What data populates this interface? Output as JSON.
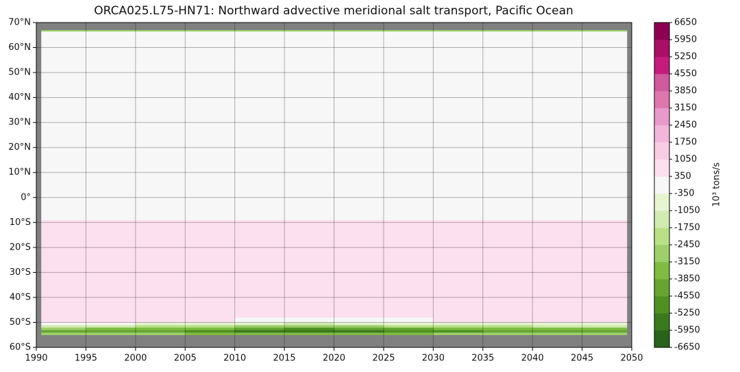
{
  "chart_data": {
    "type": "heatmap",
    "title": "ORCA025.L75-HN71: Northward advective meridional salt transport, Pacific Ocean",
    "xbins": [
      1990.5,
      1995,
      2000,
      2005,
      2010,
      2015,
      2020,
      2025,
      2030,
      2035,
      2040,
      2045,
      2049.5
    ],
    "ybins": [
      -55,
      -54,
      -53,
      -52,
      -51,
      -50,
      -48,
      -9,
      66.5,
      67
    ],
    "values": [
      [
        -2500,
        -2800,
        -3000,
        -3200,
        -3500,
        -3600,
        -3500,
        -3200,
        -3000,
        -2800,
        -2700,
        -2600
      ],
      [
        -4000,
        -4200,
        -4400,
        -4800,
        -5500,
        -5800,
        -5600,
        -5000,
        -4600,
        -4400,
        -4300,
        -4200
      ],
      [
        -3000,
        -3200,
        -3400,
        -3800,
        -4400,
        -4600,
        -4400,
        -4000,
        -3600,
        -3400,
        -3300,
        -3200
      ],
      [
        -1500,
        -1600,
        -1800,
        -2200,
        -2800,
        -3000,
        -2800,
        -2400,
        -2000,
        -1800,
        -1700,
        -1600
      ],
      [
        -300,
        -300,
        -400,
        -600,
        -1000,
        -1200,
        -1000,
        -800,
        -600,
        -500,
        -400,
        -400
      ],
      [
        900,
        900,
        800,
        600,
        200,
        100,
        200,
        300,
        400,
        500,
        600,
        600
      ],
      [
        900,
        900,
        900,
        900,
        900,
        900,
        900,
        700,
        700,
        900,
        900,
        900
      ],
      [
        200,
        200,
        200,
        200,
        200,
        200,
        200,
        200,
        200,
        200,
        200,
        200
      ],
      [
        -2500,
        -2500,
        -2500,
        -2500,
        -2500,
        -2500,
        -2500,
        -2500,
        -2500,
        -2500,
        -2500,
        -2500
      ]
    ],
    "xlim": [
      1990,
      2050
    ],
    "xticks": [
      1990,
      1995,
      2000,
      2005,
      2010,
      2015,
      2020,
      2025,
      2030,
      2035,
      2040,
      2045,
      2050
    ],
    "ylim": [
      -60,
      70
    ],
    "yticks": [
      {
        "value": 70,
        "label": "70°N"
      },
      {
        "value": 60,
        "label": "60°N"
      },
      {
        "value": 50,
        "label": "50°N"
      },
      {
        "value": 40,
        "label": "40°N"
      },
      {
        "value": 30,
        "label": "30°N"
      },
      {
        "value": 20,
        "label": "20°N"
      },
      {
        "value": 10,
        "label": "10°N"
      },
      {
        "value": 0,
        "label": "0°"
      },
      {
        "value": -10,
        "label": "10°S"
      },
      {
        "value": -20,
        "label": "20°S"
      },
      {
        "value": -30,
        "label": "30°S"
      },
      {
        "value": -40,
        "label": "40°S"
      },
      {
        "value": -50,
        "label": "50°S"
      },
      {
        "value": -60,
        "label": "60°S"
      }
    ],
    "grid": true,
    "background": "#808080",
    "clim": [
      -6650,
      6650
    ],
    "cticks": [
      6650,
      5950,
      5250,
      4550,
      3850,
      3150,
      2450,
      1750,
      1050,
      350,
      -350,
      -1050,
      -1750,
      -2450,
      -3150,
      -3850,
      -4550,
      -5250,
      -5950,
      -6650
    ],
    "colormap": [
      "#276419",
      "#3a7a1f",
      "#4d9221",
      "#67a532",
      "#7fbc41",
      "#9dcf6a",
      "#b8e186",
      "#d2ebb0",
      "#e6f5d0",
      "#f7f7f7",
      "#fde0ef",
      "#f8cde4",
      "#f1b6da",
      "#e89acb",
      "#de77ae",
      "#cf5a9d",
      "#c51b7d",
      "#a90f66",
      "#8e0152"
    ],
    "colorbar_label": "10³ tons/s"
  }
}
